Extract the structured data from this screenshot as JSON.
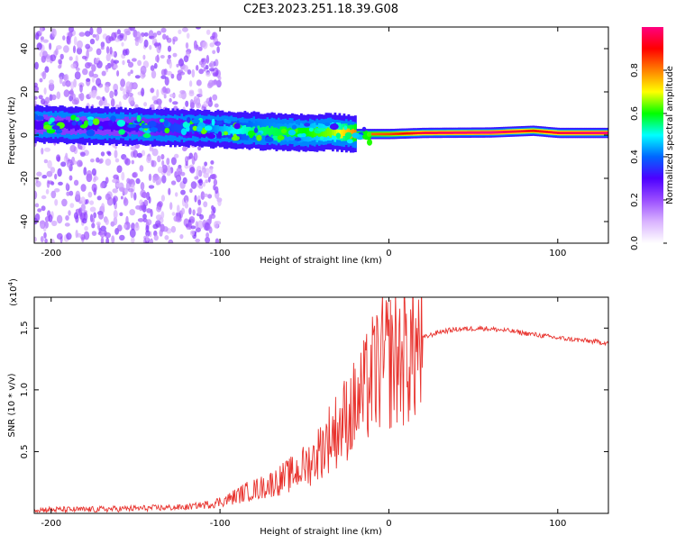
{
  "title": "C2E3.2023.251.18.39.G08",
  "colors": {
    "spectro_bg": "#ffffff",
    "snr_line": "#e8332e",
    "colormap": [
      "#ffffff",
      "#d9b3ff",
      "#9a4dff",
      "#4d00ff",
      "#0066ff",
      "#00ffff",
      "#00ff00",
      "#ffff00",
      "#ff8000",
      "#ff0000",
      "#ff0080"
    ]
  },
  "chart_data": [
    {
      "type": "heatmap",
      "xlabel": "Height of straight line (km)",
      "ylabel": "Frequency (Hz)",
      "xlim": [
        -210,
        130
      ],
      "ylim": [
        -50,
        50
      ],
      "xticks": [
        "-200",
        "-100",
        "0",
        "100"
      ],
      "xtick_values": [
        -200,
        -100,
        0,
        100
      ],
      "yticks": [
        "-40",
        "-20",
        "0",
        "20",
        "40"
      ],
      "ytick_values": [
        -40,
        -20,
        0,
        20,
        40
      ],
      "colorbar": {
        "label": "Normalized spectral amplitude",
        "range": [
          0,
          1
        ],
        "ticks": [
          "0.0",
          "0.2",
          "0.4",
          "0.6",
          "0.8"
        ],
        "tick_values": [
          0,
          0.2,
          0.4,
          0.6,
          0.8
        ]
      },
      "ridge": {
        "x": [
          -210,
          -160,
          -110,
          -80,
          -50,
          -35,
          -20,
          0,
          20,
          60,
          85,
          100,
          130
        ],
        "freq": [
          5,
          4,
          3,
          2,
          1,
          1.5,
          0.5,
          0.5,
          1,
          1.2,
          2,
          1,
          1
        ],
        "amplitude": [
          0.3,
          0.3,
          0.4,
          0.55,
          0.6,
          0.65,
          0.8,
          0.85,
          0.95,
          1.0,
          0.9,
          0.95,
          1.0
        ]
      },
      "grid": false
    },
    {
      "type": "line",
      "xlabel": "Height of straight line (km)",
      "ylabel": "SNR (10 * v/v)",
      "y_multiplier": "(x10",
      "y_multiplier_exp": "4",
      "y_multiplier_close": ")",
      "xlim": [
        -210,
        130
      ],
      "ylim": [
        0,
        1.75
      ],
      "xticks": [
        "-200",
        "-100",
        "0",
        "100"
      ],
      "xtick_values": [
        -200,
        -100,
        0,
        100
      ],
      "yticks": [
        "0.5",
        "1.0",
        "1.5"
      ],
      "ytick_values": [
        0.5,
        1.0,
        1.5
      ],
      "series": [
        {
          "x": [
            -210,
            -180,
            -150,
            -120,
            -105,
            -95,
            -85,
            -75,
            -65,
            -55,
            -45,
            -40,
            -35,
            -30,
            -25,
            -20,
            -15,
            -12,
            -8,
            -5,
            0,
            5,
            10,
            15,
            20,
            30,
            40,
            55,
            70,
            85,
            100,
            115,
            130
          ],
          "y": [
            0.03,
            0.03,
            0.04,
            0.05,
            0.08,
            0.12,
            0.18,
            0.22,
            0.28,
            0.35,
            0.45,
            0.55,
            0.65,
            0.72,
            0.82,
            0.9,
            1.0,
            1.1,
            1.2,
            1.25,
            1.3,
            1.32,
            1.35,
            1.38,
            1.42,
            1.47,
            1.49,
            1.5,
            1.48,
            1.45,
            1.42,
            1.4,
            1.38
          ]
        }
      ],
      "grid": false
    }
  ]
}
